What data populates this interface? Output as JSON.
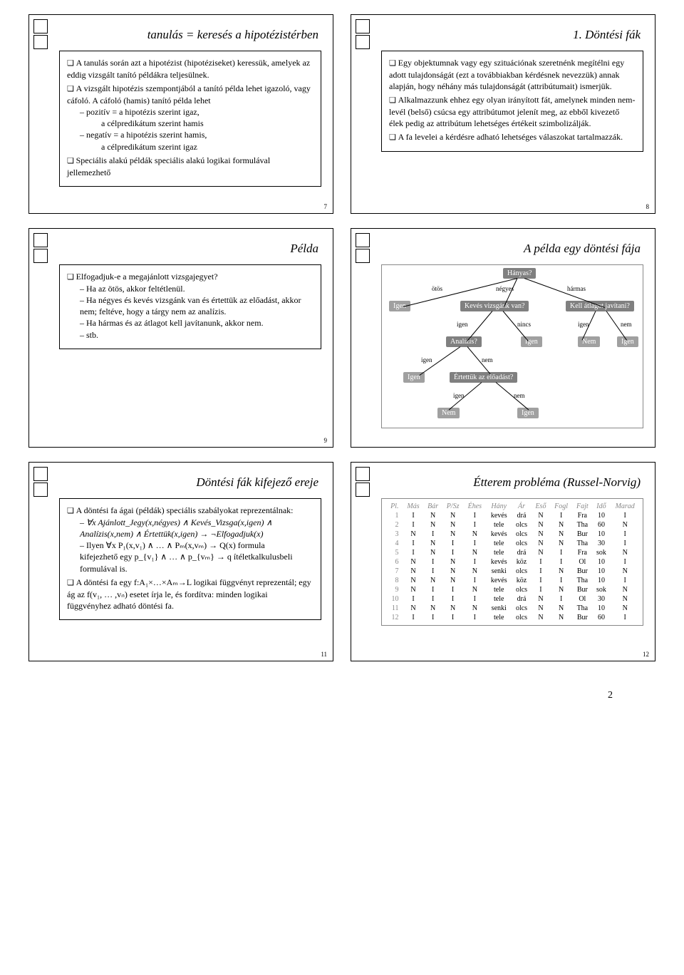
{
  "slides": {
    "s7": {
      "title": "tanulás = keresés a hipotézistérben",
      "items": [
        "A tanulás során azt a hipotézist (hipotéziseket) keressük, amelyek az eddig vizsgált tanító példákra teljesülnek.",
        "A vizsgált hipotézis szempontjából a tanító példa lehet igazoló, vagy cáfoló. A cáfoló (hamis) tanító példa lehet",
        "Speciális alakú példák speciális alakú logikai formulával jellemezhető"
      ],
      "sub7a": "pozitív = a hipotézis szerint igaz,",
      "sub7a2": "a célpredikátum szerint hamis",
      "sub7b": "negatív = a hipotézis szerint hamis,",
      "sub7b2": "a célpredikátum szerint igaz",
      "num": "7"
    },
    "s8": {
      "title": "1. Döntési fák",
      "items": [
        "Egy objektumnak vagy egy szituációnak szeretnénk megítélni egy adott tulajdonságát (ezt a továbbiakban kérdésnek nevezzük) annak alapján, hogy néhány más tulajdonságát (attribútumait) ismerjük.",
        "Alkalmazzunk ehhez egy olyan irányított fát, amelynek minden nem-levél (belső) csúcsa egy attribútumot jelenít meg, az ebből kivezető élek pedig az attribútum lehetséges értékeit szimbolizálják.",
        "A fa levelei a kérdésre adható lehetséges válaszokat tartalmazzák."
      ],
      "num": "8"
    },
    "s9": {
      "title": "Példa",
      "q": "Elfogadjuk-e a megajánlott vizsgajegyet?",
      "items": [
        "Ha az ötös, akkor feltétlenül.",
        "Ha négyes és kevés vizsgánk van és értettük az előadást, akkor nem; feltéve, hogy a tárgy nem az analízis.",
        "Ha hármas és az átlagot kell javítanunk, akkor nem.",
        "stb."
      ],
      "num": "9"
    },
    "s10": {
      "title": "A példa egy döntési fája",
      "nodes": {
        "hanyas": "Hányas?",
        "keves": "Kevés vizsgánk van?",
        "kell": "Kell átlagot javítani?",
        "analizis": "Analízis?",
        "ertettuk": "Értettük az előadást?",
        "igen": "Igen",
        "nem": "Nem"
      },
      "edges": {
        "otos": "ötös",
        "negyes": "négyes",
        "harmas": "hármas",
        "igen": "igen",
        "nem": "nem",
        "nincs": "nincs"
      }
    },
    "s11": {
      "title": "Döntési fák kifejező ereje",
      "l1": "A döntési fa ágai (példák) speciális szabályokat reprezentálnak:",
      "sub1": "∀x Ajánlott_Jegy(x,négyes) ∧ Kevés_Vizsga(x,igen) ∧ Analízis(x,nem) ∧ Értettük(x,igen) → ¬Elfogadjuk(x)",
      "sub2a": "Ilyen ∀x P₁(x,v₁) ∧ … ∧ Pₘ(x,vₘ) → Q(x) formula",
      "sub2b": "kifejezhető egy p_{v₁} ∧ … ∧ p_{vₘ} → q ítéletkalkulusbeli formulával is.",
      "l2": "A döntési fa egy f:A₁×…×Aₘ→L logikai függvényt reprezentál; egy ág az f(v₁, … ,vₙ) esetet írja le, és fordítva: minden logikai függvényhez adható döntési fa.",
      "num": "11"
    },
    "s12": {
      "title": "Étterem probléma (Russel-Norvig)",
      "cols": [
        "Pl.",
        "Más",
        "Bár",
        "P/Sz",
        "Éhes",
        "Hány",
        "Ár",
        "Eső",
        "Fogl",
        "Fajt",
        "Idő",
        "Marad"
      ],
      "rows": [
        [
          "1",
          "I",
          "N",
          "N",
          "I",
          "kevés",
          "drá",
          "N",
          "I",
          "Fra",
          "10",
          "I"
        ],
        [
          "2",
          "I",
          "N",
          "N",
          "I",
          "tele",
          "olcs",
          "N",
          "N",
          "Tha",
          "60",
          "N"
        ],
        [
          "3",
          "N",
          "I",
          "N",
          "N",
          "kevés",
          "olcs",
          "N",
          "N",
          "Bur",
          "10",
          "I"
        ],
        [
          "4",
          "I",
          "N",
          "I",
          "I",
          "tele",
          "olcs",
          "N",
          "N",
          "Tha",
          "30",
          "I"
        ],
        [
          "5",
          "I",
          "N",
          "I",
          "N",
          "tele",
          "drá",
          "N",
          "I",
          "Fra",
          "sok",
          "N"
        ],
        [
          "6",
          "N",
          "I",
          "N",
          "I",
          "kevés",
          "köz",
          "I",
          "I",
          "Ol",
          "10",
          "I"
        ],
        [
          "7",
          "N",
          "I",
          "N",
          "N",
          "senki",
          "olcs",
          "I",
          "N",
          "Bur",
          "10",
          "N"
        ],
        [
          "8",
          "N",
          "N",
          "N",
          "I",
          "kevés",
          "köz",
          "I",
          "I",
          "Tha",
          "10",
          "I"
        ],
        [
          "9",
          "N",
          "I",
          "I",
          "N",
          "tele",
          "olcs",
          "I",
          "N",
          "Bur",
          "sok",
          "N"
        ],
        [
          "10",
          "I",
          "I",
          "I",
          "I",
          "tele",
          "drá",
          "N",
          "I",
          "Ol",
          "30",
          "N"
        ],
        [
          "11",
          "N",
          "N",
          "N",
          "N",
          "senki",
          "olcs",
          "N",
          "N",
          "Tha",
          "10",
          "N"
        ],
        [
          "12",
          "I",
          "I",
          "I",
          "I",
          "tele",
          "olcs",
          "N",
          "N",
          "Bur",
          "60",
          "I"
        ]
      ],
      "num": "12"
    }
  },
  "footer": "2"
}
